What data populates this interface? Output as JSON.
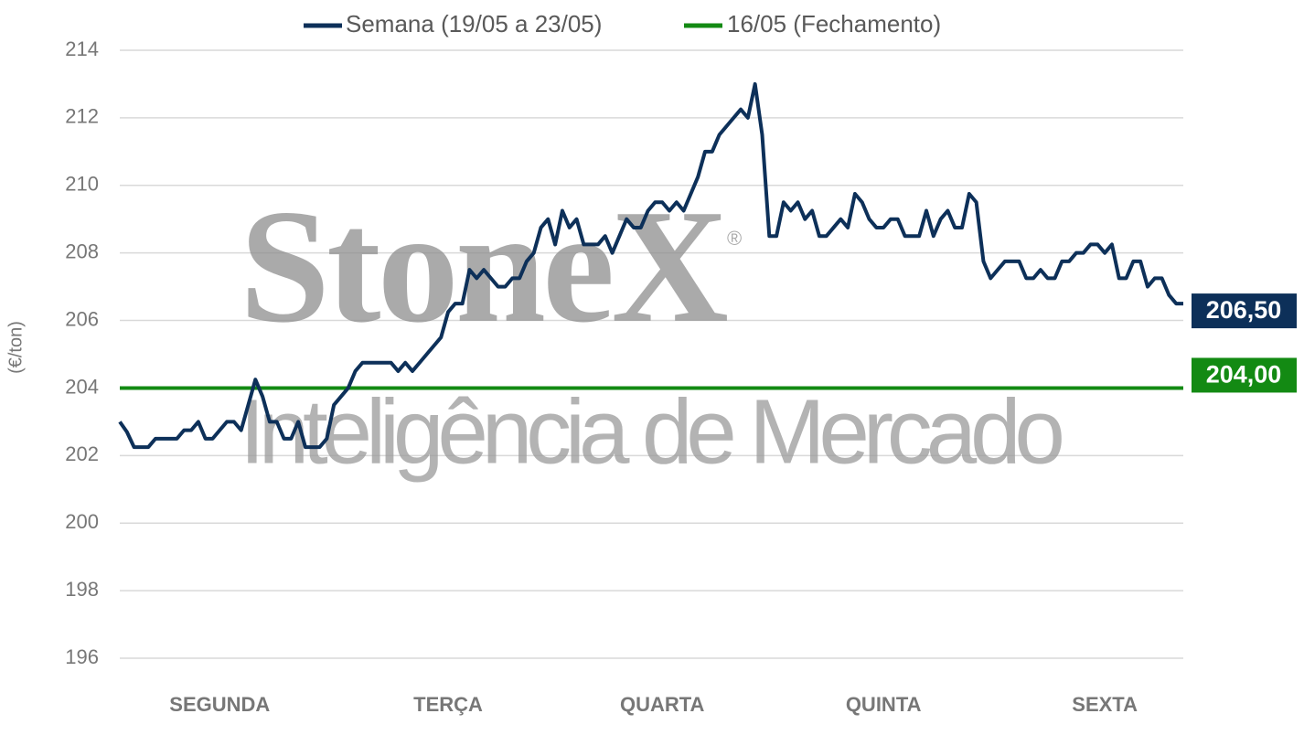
{
  "chart_data": {
    "type": "line",
    "watermark": {
      "brand": "StoneX",
      "mark": "®",
      "tagline": "Inteligência de Mercado"
    },
    "y_label": "(€/ton)",
    "categories": [
      null,
      null,
      null,
      null,
      null,
      null,
      null,
      null,
      null,
      null,
      null,
      null,
      null,
      null,
      "SEGUNDA",
      null,
      null,
      null,
      null,
      null,
      null,
      null,
      null,
      null,
      null,
      null,
      null,
      null,
      null,
      null,
      null,
      null,
      null,
      null,
      null,
      null,
      null,
      null,
      null,
      null,
      null,
      null,
      null,
      null,
      null,
      null,
      "TERÇA",
      null,
      null,
      null,
      null,
      null,
      null,
      null,
      null,
      null,
      null,
      null,
      null,
      null,
      null,
      null,
      null,
      null,
      null,
      null,
      null,
      null,
      null,
      null,
      null,
      null,
      null,
      null,
      null,
      null,
      "QUARTA",
      null,
      null,
      null,
      null,
      null,
      null,
      null,
      null,
      null,
      null,
      null,
      null,
      null,
      null,
      null,
      null,
      null,
      null,
      null,
      null,
      null,
      null,
      null,
      null,
      null,
      null,
      null,
      null,
      null,
      null,
      "QUINTA",
      null,
      null,
      null,
      null,
      null,
      null,
      null,
      null,
      null,
      null,
      null,
      null,
      null,
      null,
      null,
      null,
      null,
      null,
      null,
      null,
      null,
      null,
      null,
      null,
      null,
      null,
      null,
      null,
      null,
      null,
      "SEXTA",
      null,
      null,
      null,
      null,
      null,
      null,
      null,
      null,
      null,
      null,
      null
    ],
    "series": [
      {
        "name": "Semana (19/05 a 23/05)",
        "color": "#0d3059",
        "end_label": "206,50",
        "values": [
          203.0,
          202.7,
          202.25,
          202.25,
          202.25,
          202.5,
          202.5,
          202.5,
          202.5,
          202.75,
          202.75,
          203.0,
          202.5,
          202.5,
          202.75,
          203.0,
          203.0,
          202.75,
          203.5,
          204.25,
          203.75,
          203.0,
          203.0,
          202.5,
          202.5,
          203.0,
          202.25,
          202.25,
          202.25,
          202.5,
          203.5,
          203.75,
          204.0,
          204.5,
          204.75,
          204.75,
          204.75,
          204.75,
          204.75,
          204.5,
          204.75,
          204.5,
          204.75,
          205.0,
          205.25,
          205.5,
          206.25,
          206.5,
          206.5,
          207.5,
          207.25,
          207.5,
          207.25,
          207.0,
          207.0,
          207.25,
          207.25,
          207.75,
          208.0,
          208.75,
          209.0,
          208.25,
          209.25,
          208.75,
          209.0,
          208.25,
          208.25,
          208.25,
          208.5,
          208.0,
          208.5,
          209.0,
          208.75,
          208.75,
          209.25,
          209.5,
          209.5,
          209.25,
          209.5,
          209.25,
          209.75,
          210.25,
          211.0,
          211.0,
          211.5,
          211.75,
          212.0,
          212.25,
          212.0,
          213.0,
          211.5,
          208.5,
          208.5,
          209.5,
          209.25,
          209.5,
          209.0,
          209.25,
          208.5,
          208.5,
          208.75,
          209.0,
          208.75,
          209.75,
          209.5,
          209.0,
          208.75,
          208.75,
          209.0,
          209.0,
          208.5,
          208.5,
          208.5,
          209.25,
          208.5,
          209.0,
          209.25,
          208.75,
          208.75,
          209.75,
          209.5,
          207.75,
          207.25,
          207.5,
          207.75,
          207.75,
          207.75,
          207.25,
          207.25,
          207.5,
          207.25,
          207.25,
          207.75,
          207.75,
          208.0,
          208.0,
          208.25,
          208.25,
          208.0,
          208.25,
          207.25,
          207.25,
          207.75,
          207.75,
          207.0,
          207.25,
          207.25,
          206.75,
          206.5,
          206.5
        ]
      }
    ],
    "reference_line": {
      "name": "16/05 (Fechamento)",
      "value": 204,
      "color": "#138a13",
      "label": "204,00"
    },
    "ylim": [
      196,
      214
    ],
    "yticks": [
      196,
      198,
      200,
      202,
      204,
      206,
      208,
      210,
      212,
      214
    ],
    "grid": true
  }
}
